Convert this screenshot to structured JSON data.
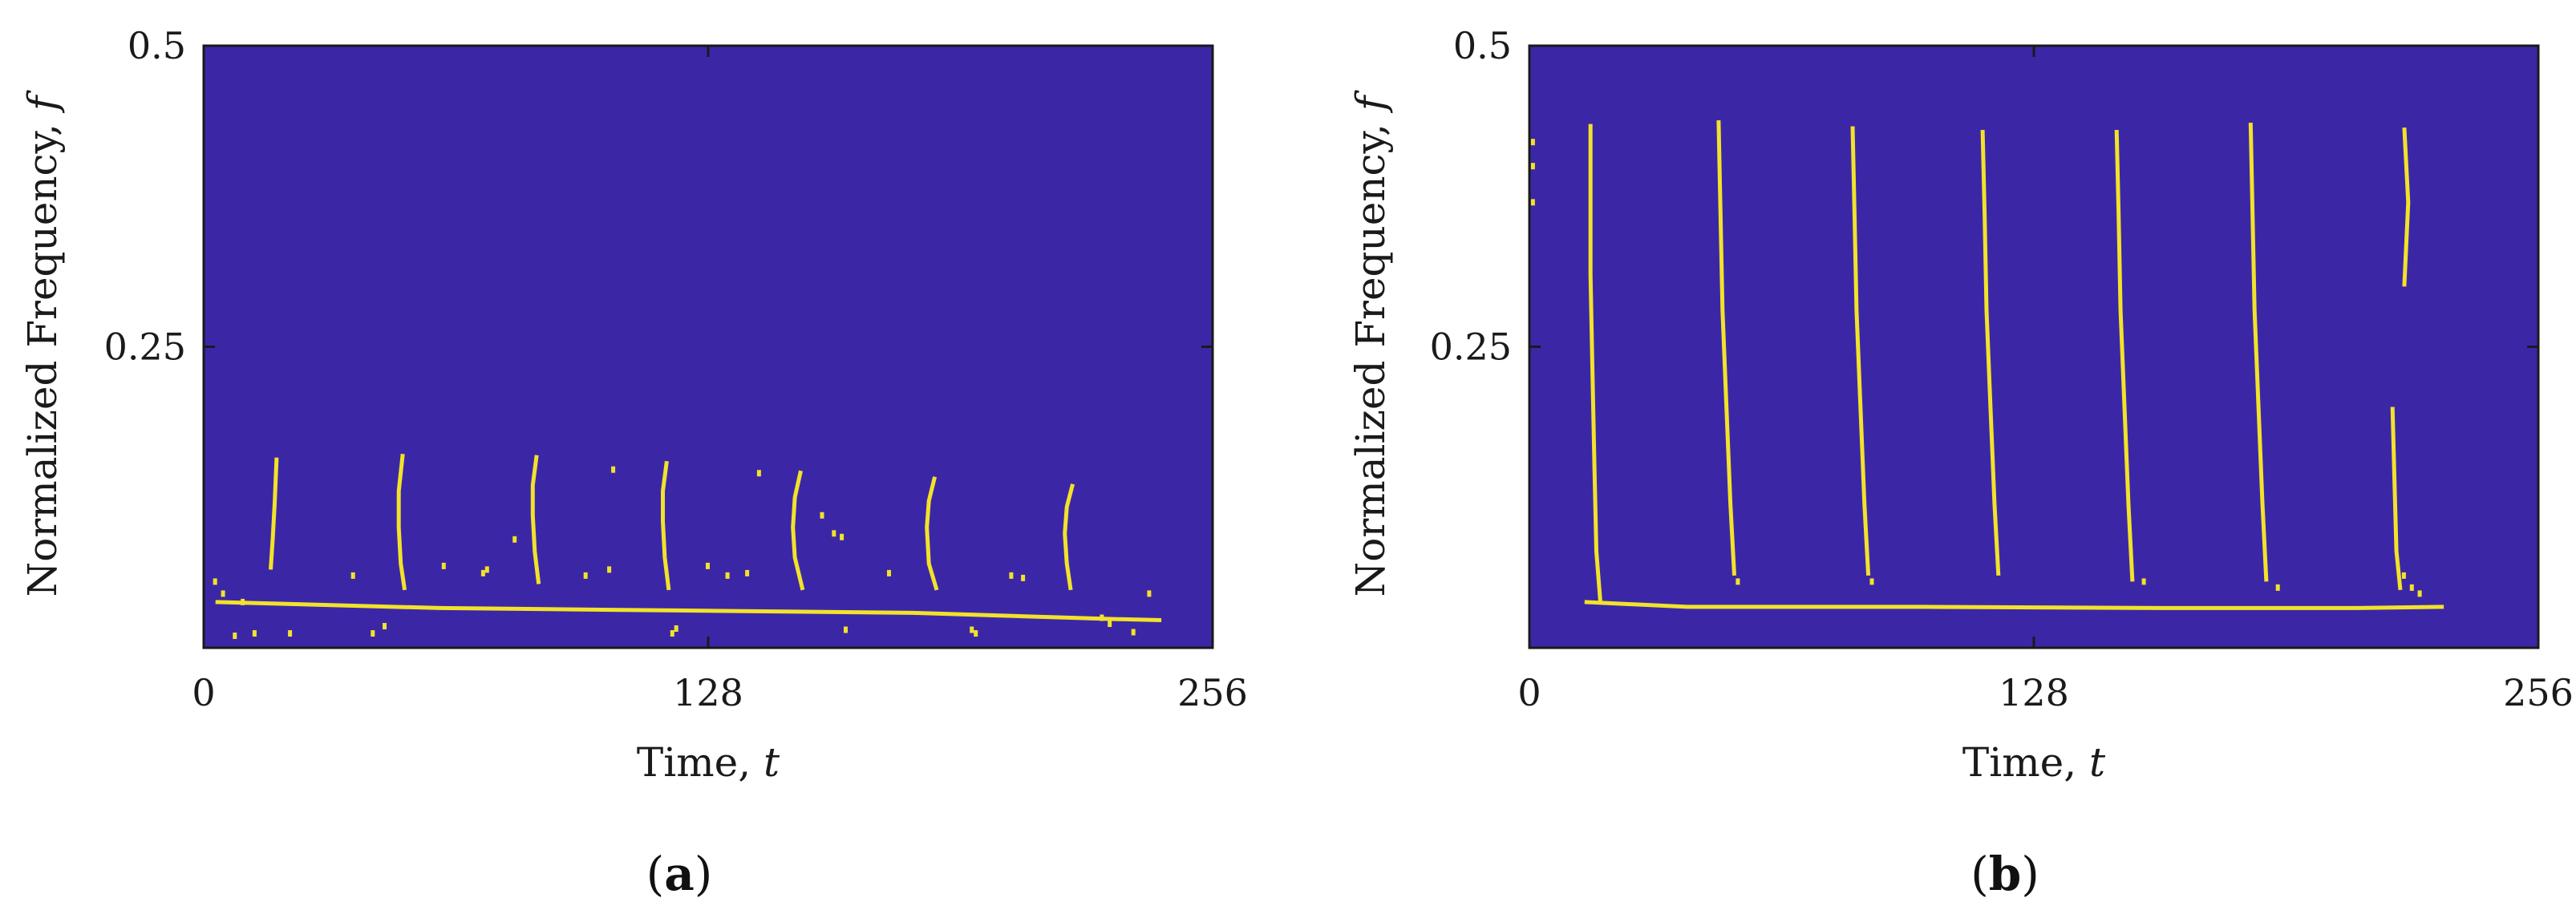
{
  "colors": {
    "background": "#3B27A6",
    "ridge": "#F2E22A",
    "frame": "#1a1a1a"
  },
  "chart_data": [
    {
      "type": "heatmap",
      "panel_label_open": "(",
      "panel_label": "a",
      "panel_label_close": ")",
      "xlabel": "Time, ",
      "xlabel_var": "t",
      "ylabel": "Normalized Frequency, ",
      "ylabel_var": "f",
      "xlim": [
        0,
        256
      ],
      "ylim": [
        0,
        0.5
      ],
      "xticks": [
        0,
        128,
        256
      ],
      "xtick_labels": [
        "0",
        "128",
        "256"
      ],
      "yticks": [
        0.25,
        0.5
      ],
      "ytick_labels": [
        "0.25",
        "0.5"
      ],
      "ridge_segments": [
        [
          [
            3,
            0.038
          ],
          [
            60,
            0.033
          ],
          [
            120,
            0.031
          ],
          [
            180,
            0.029
          ],
          [
            230,
            0.024
          ],
          [
            243,
            0.023
          ]
        ],
        [
          [
            17,
            0.065
          ],
          [
            17.5,
            0.09
          ],
          [
            18,
            0.12
          ],
          [
            18.5,
            0.158
          ]
        ],
        [
          [
            51,
            0.048
          ],
          [
            50,
            0.07
          ],
          [
            49.5,
            0.1
          ],
          [
            49.5,
            0.13
          ],
          [
            50.5,
            0.161
          ]
        ],
        [
          [
            85,
            0.053
          ],
          [
            84,
            0.08
          ],
          [
            83.5,
            0.11
          ],
          [
            83.5,
            0.135
          ],
          [
            84.5,
            0.16
          ]
        ],
        [
          [
            118,
            0.048
          ],
          [
            117,
            0.075
          ],
          [
            116.5,
            0.105
          ],
          [
            116.5,
            0.13
          ],
          [
            117.5,
            0.155
          ]
        ],
        [
          [
            152,
            0.048
          ],
          [
            150,
            0.075
          ],
          [
            149.5,
            0.1
          ],
          [
            150,
            0.125
          ],
          [
            151.5,
            0.147
          ]
        ],
        [
          [
            186,
            0.048
          ],
          [
            184,
            0.07
          ],
          [
            183.5,
            0.1
          ],
          [
            184,
            0.122
          ],
          [
            185.5,
            0.142
          ]
        ],
        [
          [
            220,
            0.048
          ],
          [
            219,
            0.07
          ],
          [
            218.5,
            0.095
          ],
          [
            219,
            0.117
          ],
          [
            220.5,
            0.136
          ]
        ]
      ],
      "speckle_points": [
        [
          3,
          0.055
        ],
        [
          5,
          0.045
        ],
        [
          10,
          0.038
        ],
        [
          8,
          0.01
        ],
        [
          13,
          0.012
        ],
        [
          22,
          0.012
        ],
        [
          38,
          0.06
        ],
        [
          43,
          0.012
        ],
        [
          46,
          0.018
        ],
        [
          61,
          0.068
        ],
        [
          71,
          0.062
        ],
        [
          72,
          0.065
        ],
        [
          79,
          0.09
        ],
        [
          97,
          0.06
        ],
        [
          103,
          0.065
        ],
        [
          104,
          0.148
        ],
        [
          128,
          0.068
        ],
        [
          133,
          0.06
        ],
        [
          138,
          0.062
        ],
        [
          141,
          0.145
        ],
        [
          119,
          0.012
        ],
        [
          120,
          0.016
        ],
        [
          157,
          0.11
        ],
        [
          160,
          0.095
        ],
        [
          162,
          0.092
        ],
        [
          163,
          0.015
        ],
        [
          174,
          0.062
        ],
        [
          195,
          0.015
        ],
        [
          196,
          0.012
        ],
        [
          205,
          0.06
        ],
        [
          208,
          0.058
        ],
        [
          228,
          0.025
        ],
        [
          230,
          0.02
        ],
        [
          236,
          0.013
        ],
        [
          240,
          0.045
        ]
      ]
    },
    {
      "type": "heatmap",
      "panel_label_open": "(",
      "panel_label": "b",
      "panel_label_close": ")",
      "xlabel": "Time, ",
      "xlabel_var": "t",
      "ylabel": "Normalized Frequency, ",
      "ylabel_var": "f",
      "xlim": [
        0,
        256
      ],
      "ylim": [
        0,
        0.5
      ],
      "xticks": [
        0,
        128,
        256
      ],
      "xtick_labels": [
        "0",
        "128",
        "256"
      ],
      "yticks": [
        0.25,
        0.5
      ],
      "ytick_labels": [
        "0.25",
        "0.5"
      ],
      "ridge_segments": [
        [
          [
            14,
            0.038
          ],
          [
            40,
            0.034
          ],
          [
            100,
            0.034
          ],
          [
            160,
            0.033
          ],
          [
            210,
            0.033
          ],
          [
            232,
            0.034
          ]
        ],
        [
          [
            18,
            0.038
          ],
          [
            17,
            0.08
          ],
          [
            16.5,
            0.15
          ],
          [
            16,
            0.23
          ],
          [
            15.5,
            0.31
          ],
          [
            15.5,
            0.435
          ]
        ],
        [
          [
            52,
            0.06
          ],
          [
            51,
            0.12
          ],
          [
            50,
            0.2
          ],
          [
            49,
            0.28
          ],
          [
            48.5,
            0.36
          ],
          [
            48,
            0.438
          ]
        ],
        [
          [
            86,
            0.06
          ],
          [
            85,
            0.12
          ],
          [
            84,
            0.2
          ],
          [
            83,
            0.28
          ],
          [
            82.5,
            0.36
          ],
          [
            82,
            0.433
          ]
        ],
        [
          [
            119,
            0.06
          ],
          [
            118,
            0.12
          ],
          [
            117,
            0.2
          ],
          [
            116,
            0.28
          ],
          [
            115.5,
            0.36
          ],
          [
            115,
            0.43
          ]
        ],
        [
          [
            153,
            0.055
          ],
          [
            152,
            0.12
          ],
          [
            151,
            0.2
          ],
          [
            150,
            0.28
          ],
          [
            149.5,
            0.36
          ],
          [
            149,
            0.43
          ]
        ],
        [
          [
            187,
            0.055
          ],
          [
            186,
            0.12
          ],
          [
            185,
            0.2
          ],
          [
            184,
            0.28
          ],
          [
            183.5,
            0.36
          ],
          [
            183,
            0.436
          ]
        ],
        [
          [
            221,
            0.048
          ],
          [
            220,
            0.08
          ],
          [
            219.5,
            0.14
          ],
          [
            219,
            0.2
          ]
        ],
        [
          [
            222,
            0.3
          ],
          [
            223,
            0.37
          ],
          [
            222,
            0.432
          ]
        ]
      ],
      "speckle_points": [
        [
          1,
          0.42
        ],
        [
          1,
          0.4
        ],
        [
          1,
          0.37
        ],
        [
          222,
          0.06
        ],
        [
          224,
          0.05
        ],
        [
          226,
          0.045
        ],
        [
          156,
          0.055
        ],
        [
          190,
          0.05
        ],
        [
          87,
          0.055
        ],
        [
          53,
          0.055
        ]
      ]
    }
  ]
}
